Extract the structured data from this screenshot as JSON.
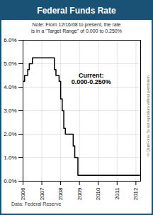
{
  "chart_data": {
    "type": "line",
    "title": "Federal Funds Rate",
    "subtitle": [
      "Note: From 12/16/08 to present, the rate",
      "is in a \"Target Range\" of 0.000 to 0.250%"
    ],
    "annotation": [
      "Current:",
      "0.000-0.250%"
    ],
    "source": "Data: Federal Reserve",
    "watermark": "©ChartForce  Do not reproduce without permission.",
    "x": [
      2006.0,
      2006.083,
      2006.25,
      2006.333,
      2006.5,
      2007.667,
      2007.75,
      2007.917,
      2008.0,
      2008.083,
      2008.167,
      2008.25,
      2008.667,
      2008.75,
      2008.917,
      2012.2
    ],
    "values": [
      4.25,
      4.5,
      4.75,
      5.0,
      5.25,
      4.75,
      4.5,
      4.25,
      3.5,
      3.0,
      2.25,
      2.0,
      1.5,
      1.0,
      0.25,
      0.25
    ],
    "line_style": "step",
    "color": "#000000",
    "xlim": [
      2006.0,
      2012.25
    ],
    "xticks": [
      2006,
      2007,
      2008,
      2009,
      2010,
      2011,
      2012
    ],
    "ylim": [
      0.0,
      6.0
    ],
    "yticks": [
      {
        "value": 0.0,
        "label": "0.0%"
      },
      {
        "value": 1.0,
        "label": "1.0%"
      },
      {
        "value": 2.0,
        "label": "2.0%"
      },
      {
        "value": 3.0,
        "label": "3.0%"
      },
      {
        "value": 4.0,
        "label": "4.0%"
      },
      {
        "value": 5.0,
        "label": "5.0%"
      },
      {
        "value": 6.0,
        "label": "6.0%"
      }
    ],
    "grid": true
  }
}
